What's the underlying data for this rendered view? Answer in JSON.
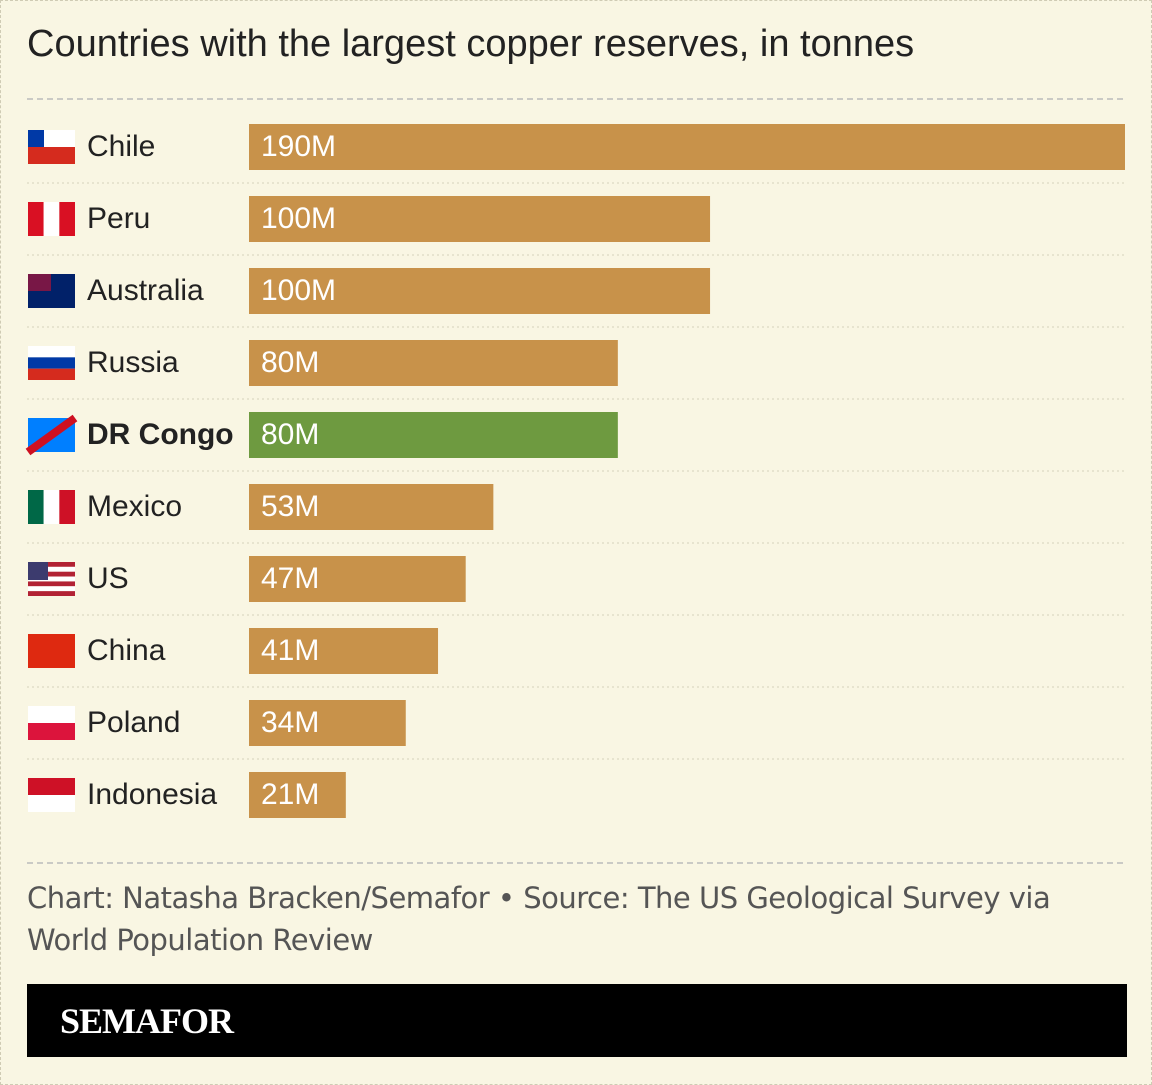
{
  "chart_data": {
    "type": "bar",
    "orientation": "horizontal",
    "title": "Countries with the largest copper reserves, in tonnes",
    "categories": [
      "Chile",
      "Peru",
      "Australia",
      "Russia",
      "DR Congo",
      "Mexico",
      "US",
      "China",
      "Poland",
      "Indonesia"
    ],
    "values": [
      190,
      100,
      100,
      80,
      80,
      53,
      47,
      41,
      34,
      21
    ],
    "value_labels": [
      "190M",
      "100M",
      "100M",
      "80M",
      "80M",
      "53M",
      "47M",
      "41M",
      "34M",
      "21M"
    ],
    "color": "#c8924a",
    "highlight": 4,
    "highlight_color": "#6e9a40",
    "xlim": [
      0,
      190
    ],
    "source": "Chart: Natasha Bracken/Semafor • Source: The US Geological Survey via World Population Review",
    "logo": "SEMAFOR"
  }
}
